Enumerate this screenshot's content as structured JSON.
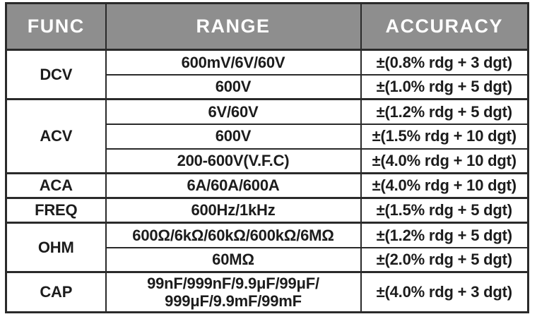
{
  "theme": {
    "header_bg": "#8e8e8e",
    "header_text": "#ffffff",
    "body_text": "#1c1c1c",
    "border": "#2a2a2a",
    "page_bg": "#ffffff"
  },
  "table": {
    "headers": [
      "FUNC",
      "RANGE",
      "ACCURACY"
    ],
    "groups": [
      {
        "func": "DCV",
        "rows": [
          {
            "range": "600mV/6V/60V",
            "accuracy": "±(0.8% rdg + 3 dgt)"
          },
          {
            "range": "600V",
            "accuracy": "±(1.0% rdg + 5 dgt)"
          }
        ]
      },
      {
        "func": "ACV",
        "rows": [
          {
            "range": "6V/60V",
            "accuracy": "±(1.2% rdg + 5 dgt)"
          },
          {
            "range": "600V",
            "accuracy": "±(1.5% rdg + 10 dgt)"
          },
          {
            "range": "200-600V(V.F.C)",
            "accuracy": "±(4.0% rdg + 10 dgt)"
          }
        ]
      },
      {
        "func": "ACA",
        "rows": [
          {
            "range": "6A/60A/600A",
            "accuracy": "±(4.0% rdg + 10 dgt)"
          }
        ]
      },
      {
        "func": "FREQ",
        "rows": [
          {
            "range": "600Hz/1kHz",
            "accuracy": "±(1.5% rdg + 5 dgt)"
          }
        ]
      },
      {
        "func": "OHM",
        "rows": [
          {
            "range": "600Ω/6kΩ/60kΩ/600kΩ/6MΩ",
            "accuracy": "±(1.2% rdg + 5 dgt)"
          },
          {
            "range": "60MΩ",
            "accuracy": "±(2.0% rdg + 5 dgt)"
          }
        ]
      },
      {
        "func": "CAP",
        "rows": [
          {
            "range": "99nF/999nF/9.9μF/99μF/\n999μF/9.9mF/99mF",
            "accuracy": "±(4.0% rdg + 3 dgt)"
          }
        ]
      }
    ]
  }
}
